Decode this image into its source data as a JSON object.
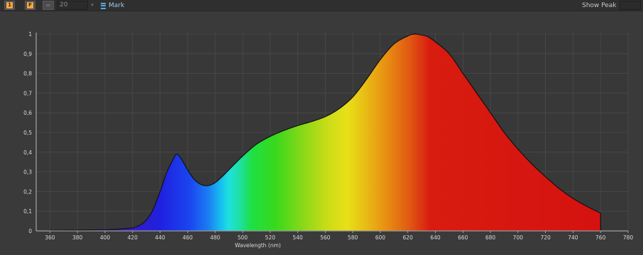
{
  "toolbar": {
    "btn1_glyph": "1",
    "btn2_glyph": "F",
    "stepper_value": "20",
    "mark_label": "Mark",
    "show_peak_label": "Show Peak"
  },
  "colors": {
    "background": "#3a3a3a",
    "plot_background": "#383838",
    "grid": "#4a4a4a",
    "accent_orange": "#f3a644",
    "mark_blue": "#5aa6dc",
    "curve_outline": "#111111"
  },
  "icons": [
    "orientation-icon",
    "fit-icon",
    "ruler-icon",
    "mark-icon"
  ],
  "chart_data": {
    "type": "area",
    "title": "",
    "xlabel": "Wavelength (nm)",
    "ylabel": "",
    "xlim": [
      350,
      780
    ],
    "ylim": [
      0,
      1
    ],
    "x_ticks": [
      360,
      380,
      400,
      420,
      440,
      460,
      480,
      500,
      520,
      540,
      560,
      580,
      600,
      620,
      640,
      660,
      680,
      700,
      720,
      740,
      760,
      780
    ],
    "y_ticks": [
      "0",
      "0,1",
      "0,2",
      "0,3",
      "0,4",
      "0,5",
      "0,6",
      "0,7",
      "0,8",
      "0,9",
      "1"
    ],
    "grid": true,
    "fill": "visible-spectrum gradient",
    "x": [
      360,
      380,
      400,
      410,
      420,
      425,
      430,
      435,
      440,
      445,
      450,
      452,
      455,
      460,
      465,
      470,
      475,
      480,
      485,
      490,
      500,
      510,
      520,
      530,
      540,
      550,
      560,
      570,
      580,
      590,
      600,
      610,
      620,
      625,
      630,
      635,
      640,
      650,
      660,
      670,
      680,
      690,
      700,
      710,
      720,
      730,
      740,
      750,
      760
    ],
    "y": [
      0.003,
      0.004,
      0.006,
      0.009,
      0.016,
      0.028,
      0.055,
      0.11,
      0.2,
      0.3,
      0.37,
      0.39,
      0.37,
      0.31,
      0.26,
      0.235,
      0.23,
      0.245,
      0.275,
      0.31,
      0.38,
      0.44,
      0.48,
      0.51,
      0.535,
      0.555,
      0.58,
      0.62,
      0.68,
      0.77,
      0.87,
      0.95,
      0.99,
      1.0,
      0.995,
      0.985,
      0.96,
      0.9,
      0.8,
      0.7,
      0.6,
      0.5,
      0.415,
      0.34,
      0.275,
      0.215,
      0.165,
      0.125,
      0.09
    ]
  }
}
